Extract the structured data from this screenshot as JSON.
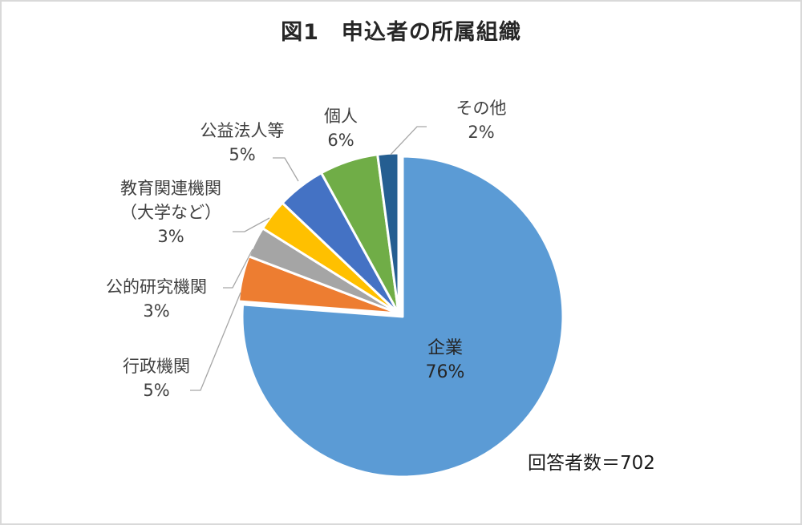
{
  "title": "図1　申込者の所属組織",
  "total_label": "回答者数＝702",
  "labels": {
    "kigyo": {
      "name": "企業",
      "pct": "76%"
    },
    "gyosei": {
      "name": "行政機関",
      "pct": "5%"
    },
    "koteki": {
      "name": "公的研究機関",
      "pct": "3%"
    },
    "kyoiku": {
      "name_line1": "教育関連機関",
      "name_line2": "（大学など）",
      "pct": "3%"
    },
    "koeki": {
      "name": "公益法人等",
      "pct": "5%"
    },
    "kojin": {
      "name": "個人",
      "pct": "6%"
    },
    "sonota": {
      "name": "その他",
      "pct": "2%"
    }
  },
  "chart_data": {
    "type": "pie",
    "title": "図1　申込者の所属組織",
    "annotation": "回答者数＝702",
    "total_respondents": 702,
    "start_angle_deg": 0,
    "direction": "clockwise",
    "categories": [
      "企業",
      "行政機関",
      "公的研究機関",
      "教育関連機関（大学など）",
      "公益法人等",
      "個人",
      "その他"
    ],
    "values": [
      76,
      5,
      3,
      3,
      5,
      6,
      2
    ],
    "value_unit": "%",
    "colors": [
      "#5b9bd5",
      "#ed7d31",
      "#a5a5a5",
      "#ffc000",
      "#4472c4",
      "#70ad47",
      "#255e91"
    ],
    "exploded": [
      "企業"
    ],
    "legend": "none",
    "data_labels": "category name and percentage, with leader lines"
  }
}
